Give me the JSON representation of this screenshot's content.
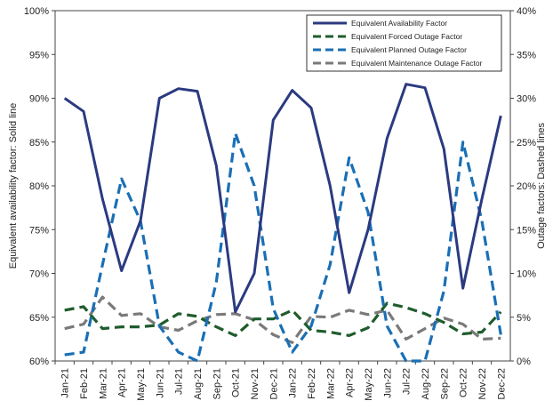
{
  "chart_data": {
    "type": "line",
    "categories": [
      "Jan-21",
      "Feb-21",
      "Mar-21",
      "Apr-21",
      "May-21",
      "Jun-21",
      "Jul-21",
      "Aug-21",
      "Sep-21",
      "Oct-21",
      "Nov-21",
      "Dec-21",
      "Jan-22",
      "Feb-22",
      "Mar-22",
      "Apr-22",
      "May-22",
      "Jun-22",
      "Jul-22",
      "Aug-22",
      "Sep-22",
      "Oct-22",
      "Nov-22",
      "Dec-22"
    ],
    "ylabel_left": "Equivalent availability factor: Solid line",
    "ylabel_right": "Outage factors: Dashed lines",
    "y_left": {
      "min": 60,
      "max": 100,
      "step": 5,
      "tick_labels": [
        "60%",
        "65%",
        "70%",
        "75%",
        "80%",
        "85%",
        "90%",
        "95%",
        "100%"
      ]
    },
    "y_right": {
      "min": 0,
      "max": 40,
      "step": 5,
      "tick_labels": [
        "0%",
        "5%",
        "10%",
        "15%",
        "20%",
        "25%",
        "30%",
        "35%",
        "40%"
      ]
    },
    "grid": false,
    "legend_position": "top-right",
    "series": [
      {
        "name": "Equivalent Availability Factor",
        "axis": "left",
        "style": "solid",
        "color": "#2b3a80",
        "values": [
          90.0,
          88.5,
          78.5,
          70.3,
          76.0,
          90.0,
          91.1,
          90.8,
          82.3,
          65.6,
          70.0,
          87.5,
          90.9,
          88.9,
          80.0,
          67.8,
          75.0,
          85.4,
          91.6,
          91.2,
          84.2,
          68.3,
          78.5,
          88.0
        ]
      },
      {
        "name": "Equivalent Forced Outage Factor",
        "axis": "right",
        "style": "dashed",
        "color": "#1f5c2c",
        "values": [
          5.8,
          6.2,
          3.7,
          3.9,
          3.9,
          4.1,
          5.4,
          5.1,
          3.9,
          2.9,
          4.8,
          4.8,
          5.8,
          3.5,
          3.3,
          2.9,
          3.8,
          6.6,
          6.1,
          5.4,
          4.4,
          3.1,
          3.3,
          5.6
        ]
      },
      {
        "name": "Equivalent Planned Outage Factor",
        "axis": "right",
        "style": "dashed",
        "color": "#1a6fb5",
        "values": [
          0.7,
          1.0,
          11.0,
          20.8,
          16.0,
          4.0,
          1.0,
          0.0,
          9.0,
          26.0,
          20.0,
          6.0,
          1.0,
          4.0,
          11.0,
          23.2,
          17.0,
          4.0,
          0.0,
          0.0,
          8.0,
          25.0,
          16.0,
          3.0
        ]
      },
      {
        "name": "Equivalent Maintenance Outage Factor",
        "axis": "right",
        "style": "dashed",
        "color": "#7a7a7a",
        "values": [
          3.7,
          4.2,
          7.3,
          5.2,
          5.4,
          3.9,
          3.5,
          4.6,
          5.3,
          5.4,
          4.7,
          3.0,
          2.1,
          5.1,
          5.0,
          5.8,
          5.3,
          5.8,
          2.5,
          3.7,
          4.9,
          4.2,
          2.5,
          2.6
        ]
      }
    ]
  }
}
